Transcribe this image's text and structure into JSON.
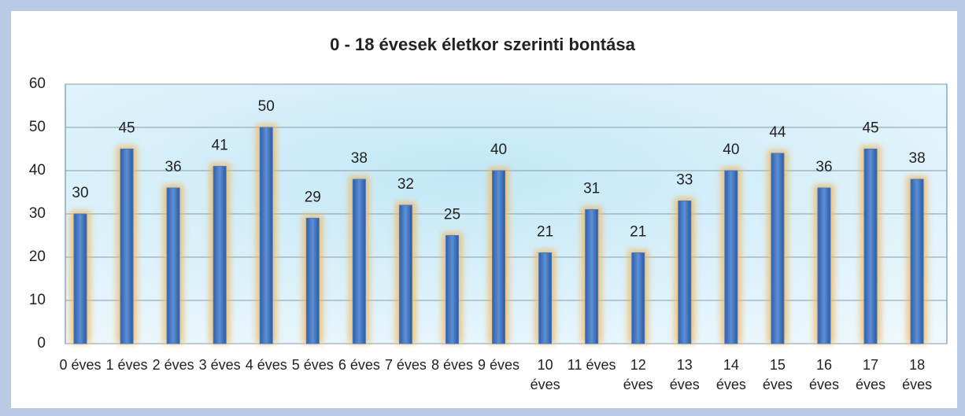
{
  "chart_data": {
    "type": "bar",
    "title": "0 - 18 évesek életkor szerinti bontása",
    "categories": [
      "0 éves",
      "1 éves",
      "2 éves",
      "3 éves",
      "4 éves",
      "5 éves",
      "6 éves",
      "7 éves",
      "8 éves",
      "9 éves",
      "10 éves",
      "11 éves",
      "12 éves",
      "13 éves",
      "14 éves",
      "15 éves",
      "16 éves",
      "17 éves",
      "18 éves"
    ],
    "values": [
      30,
      45,
      36,
      41,
      50,
      29,
      38,
      32,
      25,
      40,
      21,
      31,
      21,
      33,
      40,
      44,
      36,
      45,
      38
    ],
    "color": "#4a78bf",
    "ylim": [
      0,
      60
    ],
    "yticks": [
      0,
      10,
      20,
      30,
      40,
      50,
      60
    ],
    "grid": true
  }
}
